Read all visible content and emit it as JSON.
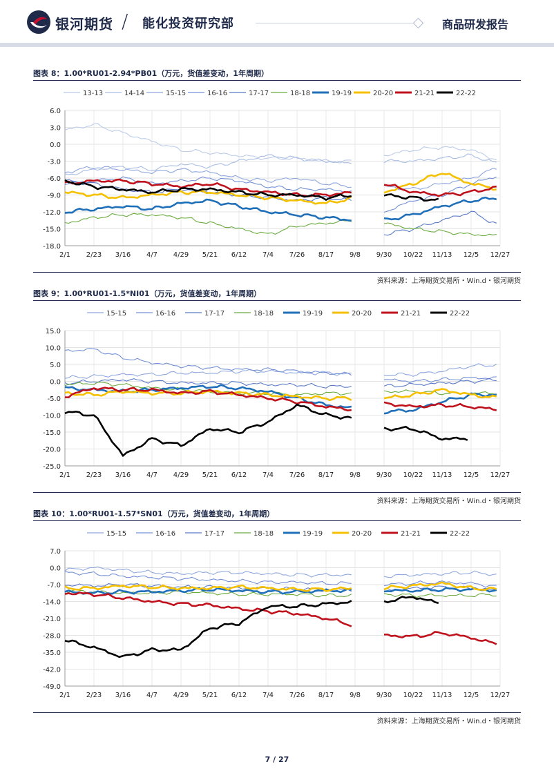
{
  "header": {
    "brand": "银河期货",
    "department": "能化投资研究部",
    "report_type": "商品研发报告"
  },
  "page": {
    "number": "7 / 27"
  },
  "source_text": "资料来源：上海期货交易所・Win.d・银河期货",
  "colors": {
    "13-13": "#bccbe8",
    "14-14": "#a9bde3",
    "15-15": "#8fa7de",
    "16-16": "#7390d6",
    "17-17": "#5a7ac8",
    "18-18": "#6aab3e",
    "19-19": "#1f6fb9",
    "20-20": "#f5c000",
    "21-21": "#c0121c",
    "22-22": "#000000"
  },
  "charts": [
    {
      "id": "fig8",
      "title": "图表 8：1.00*RU01-2.94*PB01（万元，货值差变动，1年周期）",
      "chart_data": {
        "type": "line",
        "legend_position": "top",
        "grid": true,
        "x_ticks": [
          "2/1",
          "2/23",
          "3/16",
          "4/7",
          "4/29",
          "5/21",
          "6/12",
          "7/4",
          "7/26",
          "8/17",
          "9/8",
          "9/30",
          "10/22",
          "11/13",
          "12/5",
          "12/27"
        ],
        "y_ticks": [
          "6.0",
          "3.0",
          "0.0",
          "-3.0",
          "-6.0",
          "-9.0",
          "-12.0",
          "-15.0",
          "-18.0"
        ],
        "ylim": [
          -18,
          6
        ],
        "series": [
          {
            "name": "13-13",
            "values": [
              2.5,
              3.5,
              2.0,
              0.5,
              -1.0,
              -1.5,
              -2.0,
              -2.5,
              -2.5,
              -3.0,
              -3.0,
              -2.0,
              -1.0,
              -0.5,
              -1.0,
              -3.0
            ],
            "gap_after": 10
          },
          {
            "name": "14-14",
            "values": [
              -5.5,
              -4.5,
              -4.0,
              -4.5,
              -3.5,
              -4.0,
              -3.0,
              -2.0,
              -2.5,
              -3.0,
              -3.5,
              -3.0,
              -3.0,
              -2.5,
              -2.0,
              -3.5
            ],
            "gap_after": 10
          },
          {
            "name": "15-15",
            "values": [
              -5.0,
              -4.0,
              -4.5,
              -5.0,
              -4.5,
              -5.0,
              -6.0,
              -6.5,
              -6.0,
              -7.0,
              -7.5,
              -7.5,
              -8.0,
              -7.0,
              -6.0,
              -4.0
            ],
            "gap_after": 10
          },
          {
            "name": "16-16",
            "values": [
              -7.0,
              -6.5,
              -6.0,
              -7.0,
              -6.5,
              -6.0,
              -6.5,
              -7.5,
              -8.0,
              -8.0,
              -8.5,
              -12.0,
              -10.0,
              -9.0,
              -7.0,
              -5.5
            ],
            "gap_after": 10
          },
          {
            "name": "17-17",
            "values": [
              -6.5,
              -7.0,
              -8.0,
              -8.5,
              -8.0,
              -8.5,
              -9.0,
              -9.5,
              -10.0,
              -9.5,
              -10.0,
              -16.0,
              -15.0,
              -13.5,
              -12.0,
              -14.5
            ],
            "gap_after": 10
          },
          {
            "name": "18-18",
            "values": [
              -14.0,
              -13.0,
              -12.5,
              -12.5,
              -13.0,
              -14.0,
              -15.0,
              -16.0,
              -14.5,
              -14.0,
              -13.5,
              -14.0,
              -15.0,
              -15.5,
              -16.0,
              -16.2
            ],
            "gap_after": 10
          },
          {
            "name": "19-19",
            "values": [
              -12.0,
              -11.5,
              -11.0,
              -11.5,
              -10.5,
              -10.0,
              -11.0,
              -12.0,
              -12.5,
              -13.0,
              -13.5,
              -13.5,
              -12.5,
              -11.0,
              -10.0,
              -9.5
            ],
            "gap_after": 10
          },
          {
            "name": "20-20",
            "values": [
              -8.5,
              -9.0,
              -9.5,
              -9.0,
              -8.5,
              -8.5,
              -9.0,
              -9.5,
              -10.0,
              -10.5,
              -9.5,
              -8.5,
              -7.0,
              -5.0,
              -7.0,
              -8.0
            ],
            "gap_after": 10
          },
          {
            "name": "21-21",
            "values": [
              -7.0,
              -6.5,
              -6.5,
              -7.0,
              -7.5,
              -7.0,
              -8.0,
              -8.5,
              -9.0,
              -9.0,
              -8.5,
              -7.0,
              -8.5,
              -9.0,
              -8.5,
              -7.5
            ],
            "gap_after": 10
          },
          {
            "name": "22-22",
            "values": [
              -6.5,
              -7.5,
              -8.0,
              -8.5,
              -8.0,
              -8.0,
              -8.5,
              -9.0,
              -9.0,
              -9.5,
              -9.0,
              -9.0,
              -9.5,
              -10.0,
              null,
              null
            ],
            "gap_after": 10
          }
        ]
      }
    },
    {
      "id": "fig9",
      "title": "图表 9：1.00*RU01-1.5*NI01（万元，货值差变动，1年周期）",
      "chart_data": {
        "type": "line",
        "legend_position": "top",
        "grid": true,
        "x_ticks": [
          "2/1",
          "2/23",
          "3/16",
          "4/7",
          "4/29",
          "5/21",
          "6/12",
          "7/4",
          "7/26",
          "8/17",
          "9/8",
          "9/30",
          "10/22",
          "11/13",
          "12/5",
          "12/27"
        ],
        "y_ticks": [
          "15.0",
          "10.0",
          "5.0",
          "0.0",
          "-5.0",
          "-10.0",
          "-15.0",
          "-20.0",
          "-25.0"
        ],
        "ylim": [
          -25,
          15
        ],
        "series": [
          {
            "name": "15-15",
            "values": [
              1.0,
              1.5,
              2.0,
              2.0,
              2.5,
              2.5,
              3.0,
              3.0,
              2.5,
              2.5,
              2.0,
              2.0,
              2.0,
              3.0,
              4.5,
              5.0
            ],
            "gap_after": 10
          },
          {
            "name": "16-16",
            "values": [
              9.0,
              9.5,
              7.0,
              5.5,
              4.5,
              4.0,
              3.5,
              3.5,
              3.0,
              2.5,
              2.0,
              0.5,
              0.0,
              0.5,
              1.0,
              1.0
            ],
            "gap_after": 10
          },
          {
            "name": "17-17",
            "values": [
              -0.5,
              0.0,
              0.5,
              0.0,
              -0.5,
              -0.5,
              -0.5,
              -1.0,
              -1.0,
              -1.5,
              -1.5,
              -1.5,
              -1.0,
              -0.5,
              0.0,
              0.5
            ],
            "gap_after": 10
          },
          {
            "name": "18-18",
            "values": [
              -1.0,
              -0.5,
              -1.0,
              -2.0,
              -2.5,
              -3.0,
              -3.5,
              -3.5,
              -4.0,
              -3.5,
              -3.5,
              -3.0,
              -3.0,
              -3.5,
              -3.5,
              -3.5
            ],
            "gap_after": 10
          },
          {
            "name": "19-19",
            "values": [
              -2.0,
              -2.5,
              -3.0,
              -2.5,
              -2.0,
              -1.5,
              -2.0,
              -3.0,
              -5.0,
              -7.0,
              -8.0,
              -9.0,
              -8.5,
              -6.0,
              -4.0,
              -4.0
            ],
            "gap_after": 10
          },
          {
            "name": "20-20",
            "values": [
              -3.5,
              -4.0,
              -3.0,
              -3.5,
              -3.5,
              -3.0,
              -3.5,
              -4.0,
              -4.5,
              -5.0,
              -5.0,
              -5.0,
              -4.0,
              -2.5,
              -4.0,
              -5.0
            ],
            "gap_after": 10
          },
          {
            "name": "21-21",
            "values": [
              -4.5,
              -2.0,
              -2.5,
              -2.5,
              -3.5,
              -3.0,
              -4.0,
              -5.0,
              -6.0,
              -7.5,
              -8.5,
              -6.5,
              -7.5,
              -7.0,
              -7.5,
              -8.5
            ],
            "gap_after": 10
          },
          {
            "name": "22-22",
            "values": [
              -9.0,
              -10.0,
              -22.0,
              -17.0,
              -19.0,
              -14.0,
              -15.0,
              -12.0,
              -7.0,
              -10.0,
              -11.0,
              -14.0,
              -14.0,
              -17.0,
              -17.0,
              null
            ],
            "gap_after": 10
          }
        ]
      }
    },
    {
      "id": "fig10",
      "title": "图表 10：1.00*RU01-1.57*SN01（万元，货值差变动，1年周期）",
      "chart_data": {
        "type": "line",
        "legend_position": "top",
        "grid": true,
        "x_ticks": [
          "2/1",
          "2/23",
          "3/16",
          "4/7",
          "4/29",
          "5/21",
          "6/12",
          "7/4",
          "7/26",
          "8/17",
          "9/8",
          "9/30",
          "10/22",
          "11/13",
          "12/5",
          "12/27"
        ],
        "y_ticks": [
          "7.0",
          "0.0",
          "-7.0",
          "-14.0",
          "-21.0",
          "-28.0",
          "-35.0",
          "-42.0",
          "-49.0"
        ],
        "ylim": [
          -49,
          7
        ],
        "series": [
          {
            "name": "15-15",
            "values": [
              -1.0,
              0.0,
              -1.0,
              -2.0,
              -2.5,
              -2.0,
              -2.0,
              -2.5,
              -3.0,
              -3.0,
              -3.0,
              -3.5,
              -3.0,
              -2.5,
              -2.0,
              -3.0
            ],
            "gap_after": 10
          },
          {
            "name": "16-16",
            "values": [
              -2.0,
              -2.5,
              -3.5,
              -4.0,
              -4.5,
              -5.0,
              -5.5,
              -6.0,
              -6.0,
              -6.5,
              -6.5,
              -7.0,
              -6.5,
              -6.0,
              -6.5,
              -8.0
            ],
            "gap_after": 10
          },
          {
            "name": "17-17",
            "values": [
              -7.0,
              -7.5,
              -7.0,
              -7.5,
              -8.0,
              -8.0,
              -8.5,
              -8.5,
              -9.0,
              -9.0,
              -9.0,
              -9.5,
              -8.5,
              -8.0,
              -8.5,
              -9.5
            ],
            "gap_after": 10
          },
          {
            "name": "18-18",
            "values": [
              -9.5,
              -10.0,
              -10.5,
              -10.5,
              -10.0,
              -10.5,
              -11.0,
              -11.0,
              -11.0,
              -11.5,
              -11.5,
              -11.0,
              -11.5,
              -11.5,
              -11.5,
              -11.0
            ],
            "gap_after": 10
          },
          {
            "name": "19-19",
            "values": [
              -10.0,
              -10.5,
              -10.0,
              -10.0,
              -9.5,
              -9.0,
              -9.5,
              -10.0,
              -10.0,
              -9.5,
              -9.5,
              -9.5,
              -9.5,
              -9.0,
              -9.0,
              -9.5
            ],
            "gap_after": 10
          },
          {
            "name": "20-20",
            "values": [
              -8.5,
              -8.5,
              -7.5,
              -8.0,
              -8.5,
              -8.5,
              -8.0,
              -8.5,
              -9.0,
              -9.0,
              -8.5,
              -8.5,
              -7.5,
              -6.5,
              -8.5,
              -9.0
            ],
            "gap_after": 10
          },
          {
            "name": "21-21",
            "values": [
              -10.5,
              -11.0,
              -12.5,
              -14.0,
              -15.0,
              -15.5,
              -17.0,
              -18.0,
              -19.0,
              -21.0,
              -24.0,
              -28.0,
              -28.5,
              -27.0,
              -29.0,
              -32.0
            ],
            "gap_after": 10
          },
          {
            "name": "22-22",
            "values": [
              -30.0,
              -33.0,
              -37.0,
              -34.0,
              -34.0,
              -25.0,
              -23.0,
              -16.0,
              -16.0,
              -15.0,
              -14.0,
              -14.0,
              -12.0,
              -15.0,
              null,
              null
            ],
            "gap_after": 10
          }
        ]
      }
    }
  ]
}
